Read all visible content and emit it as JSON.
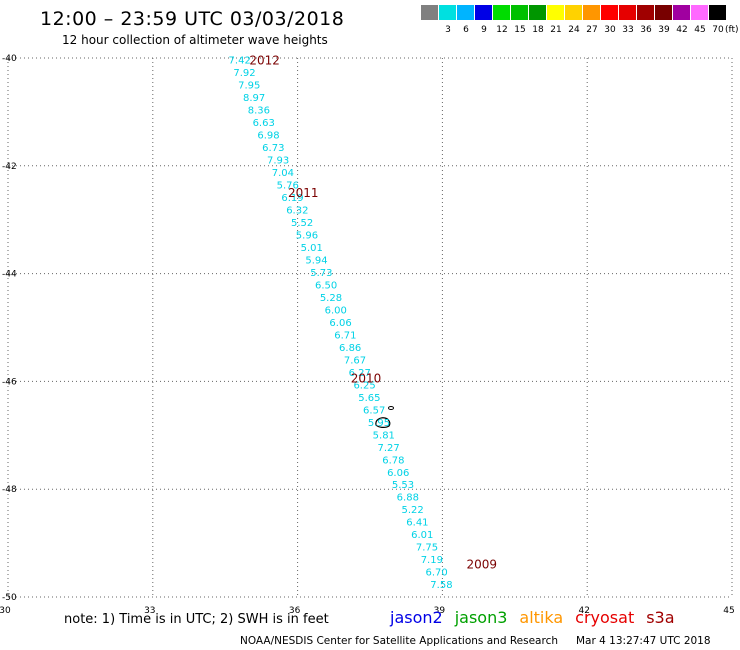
{
  "header": {
    "title": "12:00 – 23:59 UTC 03/03/2018",
    "subtitle": "12 hour collection of altimeter wave heights"
  },
  "color_scale": {
    "unit": "(ft)",
    "entries": [
      {
        "label": "",
        "color": "#808080"
      },
      {
        "label": "3",
        "color": "#00e0e0"
      },
      {
        "label": "6",
        "color": "#00b4ff"
      },
      {
        "label": "9",
        "color": "#0000e6"
      },
      {
        "label": "12",
        "color": "#00dc00"
      },
      {
        "label": "15",
        "color": "#00c000"
      },
      {
        "label": "18",
        "color": "#009600"
      },
      {
        "label": "21",
        "color": "#ffff00"
      },
      {
        "label": "24",
        "color": "#ffd200"
      },
      {
        "label": "27",
        "color": "#ff9600"
      },
      {
        "label": "30",
        "color": "#ff0000"
      },
      {
        "label": "33",
        "color": "#e60000"
      },
      {
        "label": "36",
        "color": "#a00000"
      },
      {
        "label": "39",
        "color": "#780000"
      },
      {
        "label": "42",
        "color": "#a000a0"
      },
      {
        "label": "45",
        "color": "#ff69ff"
      },
      {
        "label": "70",
        "color": "#000000"
      }
    ]
  },
  "axes": {
    "lon_ticks": [
      "30",
      "33",
      "36",
      "39",
      "42",
      "45"
    ],
    "lat_ticks": [
      "-40",
      "-42",
      "-44",
      "-46",
      "-48",
      "-50"
    ],
    "lon_range": [
      30,
      45
    ],
    "lat_range": [
      -40,
      -50
    ]
  },
  "track": {
    "color": "#00d2e6",
    "values": [
      "7.42",
      "7.92",
      "7.95",
      "8.97",
      "8.36",
      "6.63",
      "6.98",
      "6.73",
      "7.93",
      "7.04",
      "5.76",
      "6.19",
      "6.32",
      "5.52",
      "5.96",
      "5.01",
      "5.94",
      "5.73",
      "6.50",
      "5.28",
      "6.00",
      "6.06",
      "6.71",
      "6.86",
      "7.67",
      "6.27",
      "6.25",
      "5.65",
      "6.57",
      "5.95",
      "5.81",
      "7.27",
      "6.78",
      "6.06",
      "5.53",
      "6.88",
      "5.22",
      "6.41",
      "6.01",
      "7.75",
      "7.19",
      "6.70",
      "7.58"
    ]
  },
  "year_labels": {
    "color": "#7a0000",
    "items": [
      {
        "text": "2012",
        "lon": 35.0,
        "lat": -40.05
      },
      {
        "text": "2011",
        "lon": 35.8,
        "lat": -42.5
      },
      {
        "text": "2010",
        "lon": 37.1,
        "lat": -45.95
      },
      {
        "text": "2009",
        "lon": 39.5,
        "lat": -49.4
      }
    ]
  },
  "footer": {
    "note": "note: 1) Time is in UTC; 2) SWH is in feet",
    "satellites": [
      {
        "name": "jason2",
        "color": "#0000e6"
      },
      {
        "name": "jason3",
        "color": "#00a000"
      },
      {
        "name": "altika",
        "color": "#ff9600"
      },
      {
        "name": "cryosat",
        "color": "#e60000"
      },
      {
        "name": "s3a",
        "color": "#a00000"
      }
    ],
    "agency": "NOAA/NESDIS Center for Satellite Applications and Research",
    "timestamp": "Mar  4 13:27:47 UTC 2018"
  }
}
